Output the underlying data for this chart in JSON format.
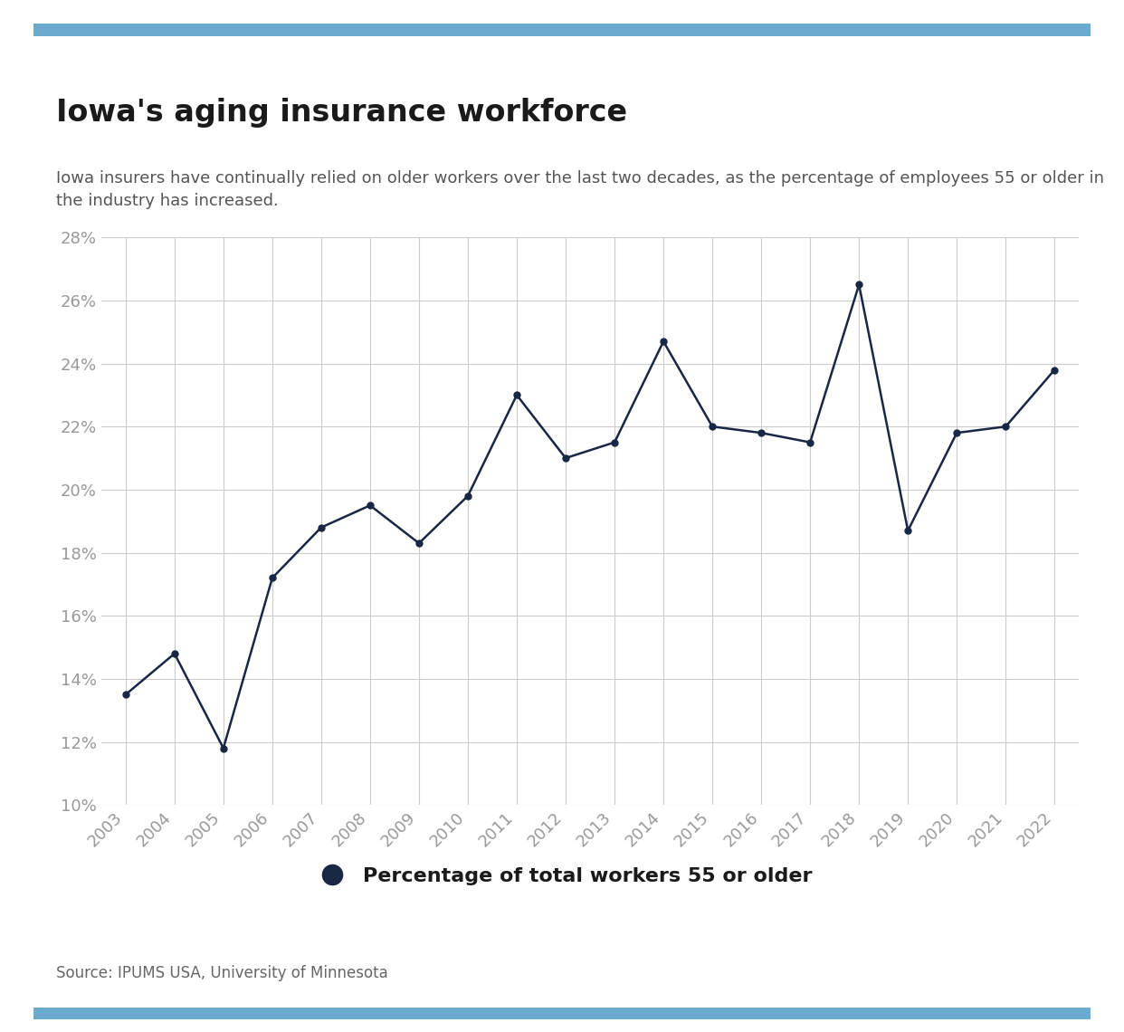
{
  "years": [
    2003,
    2004,
    2005,
    2006,
    2007,
    2008,
    2009,
    2010,
    2011,
    2012,
    2013,
    2014,
    2015,
    2016,
    2017,
    2018,
    2019,
    2020,
    2021,
    2022
  ],
  "values": [
    13.5,
    14.8,
    11.8,
    17.2,
    18.8,
    19.5,
    18.3,
    19.8,
    23.0,
    21.0,
    21.5,
    24.7,
    22.0,
    21.8,
    21.5,
    26.5,
    18.7,
    21.8,
    22.0,
    23.8
  ],
  "title": "Iowa's aging insurance workforce",
  "subtitle": "Iowa insurers have continually relied on older workers over the last two decades, as the percentage of employees 55 or older in\nthe industry has increased.",
  "legend_label": "Percentage of total workers 55 or older",
  "source_text": "Source: IPUMS USA, University of Minnesota",
  "line_color": "#1a2744",
  "marker_color": "#1a2744",
  "top_bar_color": "#6aabcf",
  "bottom_bar_color": "#6aabcf",
  "grid_color": "#cccccc",
  "tick_color": "#999999",
  "background_color": "#ffffff",
  "ylim_min": 10,
  "ylim_max": 28,
  "ytick_step": 2,
  "title_fontsize": 24,
  "subtitle_fontsize": 13,
  "tick_fontsize": 13,
  "legend_fontsize": 16,
  "source_fontsize": 12
}
